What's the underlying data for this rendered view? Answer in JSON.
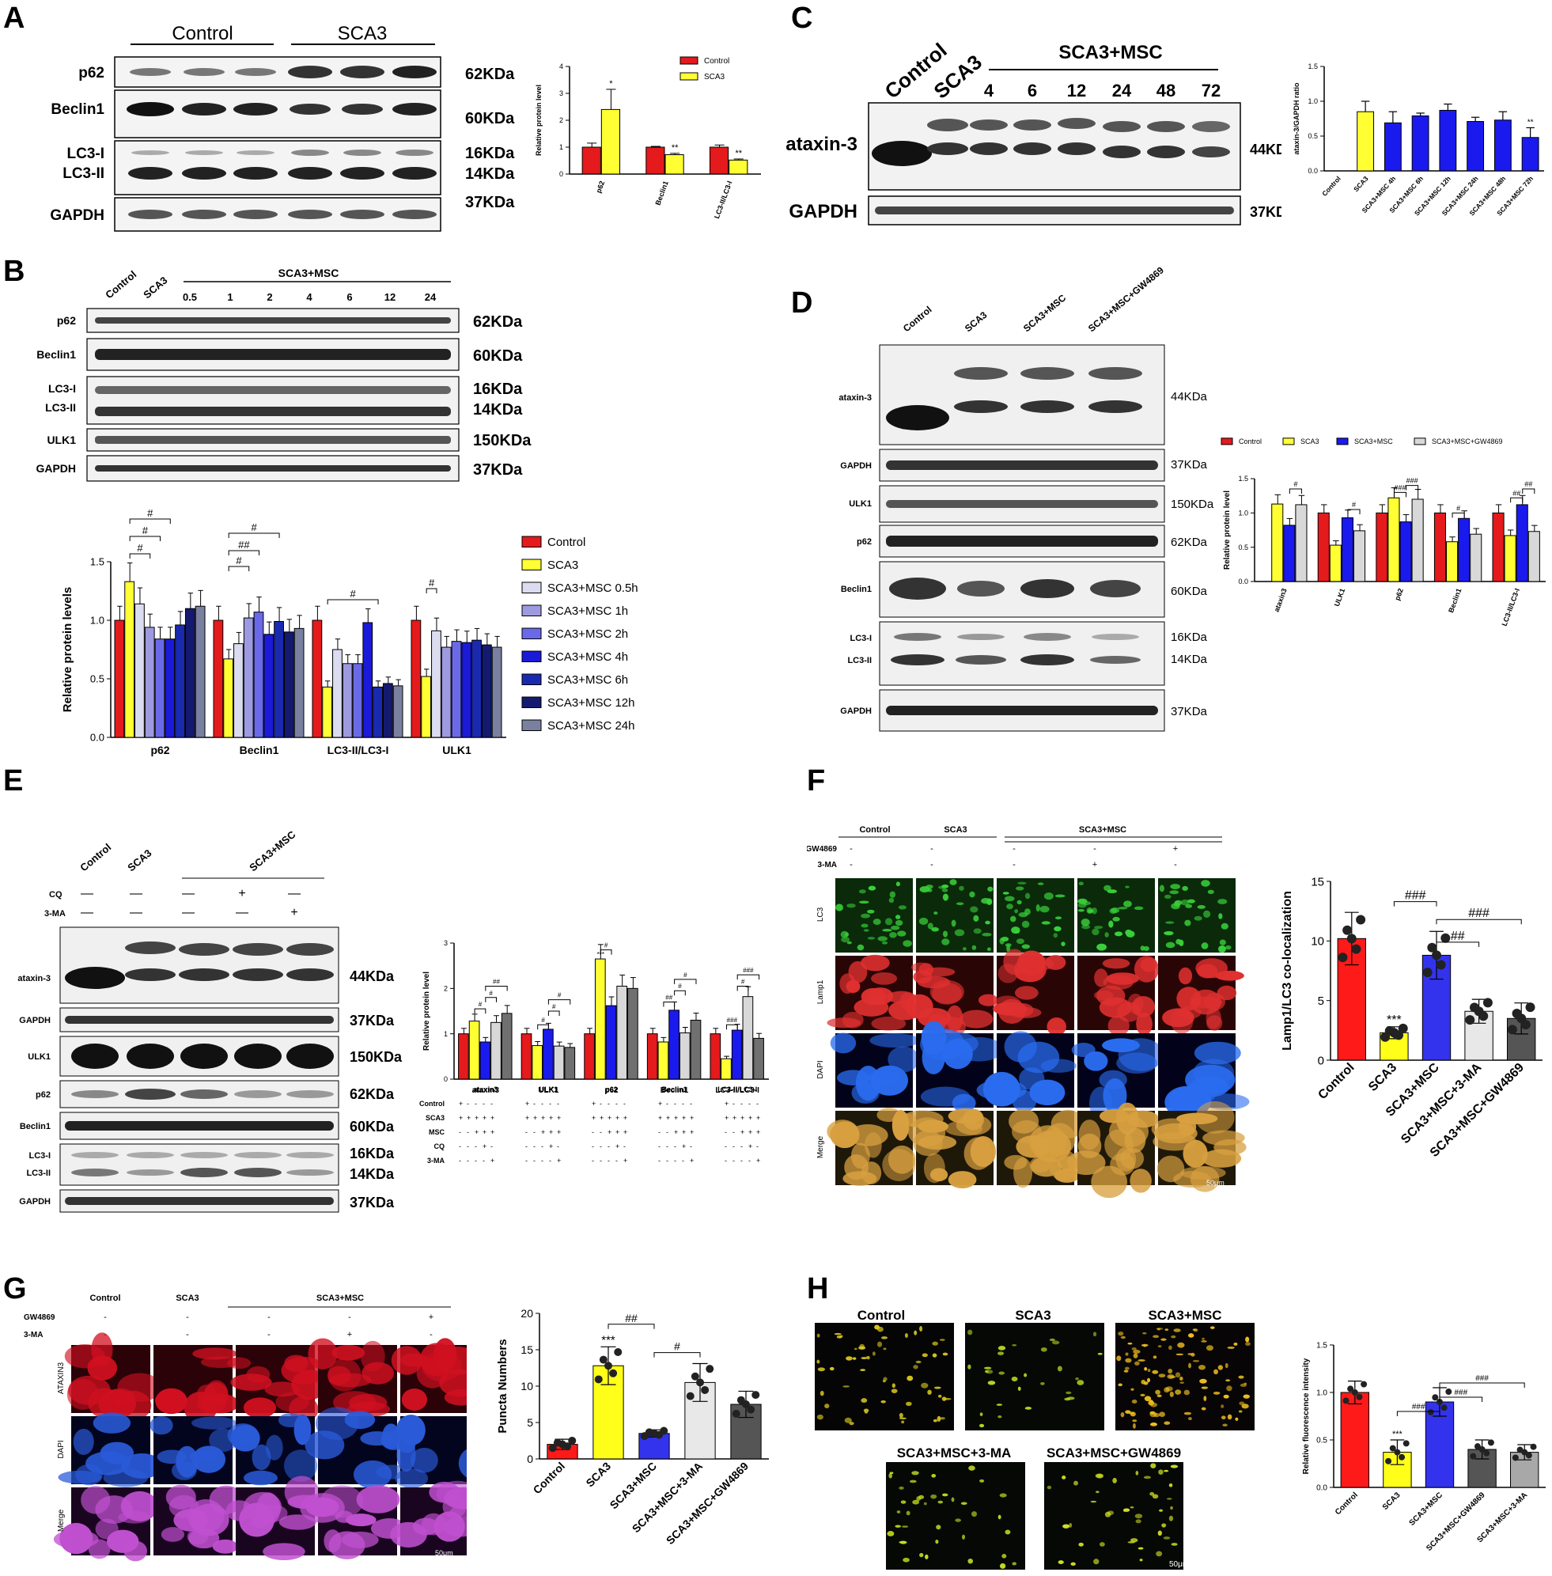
{
  "panels": {
    "A": {
      "letter": "A",
      "groups": [
        "Control",
        "SCA3"
      ],
      "rows": [
        {
          "label": "p62",
          "kda": "62KDa"
        },
        {
          "label": "Beclin1",
          "kda": "60KDa"
        },
        {
          "label": "LC3-I",
          "kda": "16KDa"
        },
        {
          "label": "LC3-II",
          "kda": "14KDa"
        },
        {
          "label": "GAPDH",
          "kda": "37KDa"
        }
      ]
    },
    "B": {
      "letter": "B",
      "lanes": [
        "Control",
        "SCA3",
        "0.5",
        "1",
        "2",
        "4",
        "6",
        "12",
        "24"
      ],
      "group": "SCA3+MSC",
      "rows": [
        {
          "label": "p62",
          "kda": "62KDa"
        },
        {
          "label": "Beclin1",
          "kda": "60KDa"
        },
        {
          "label": "LC3-I",
          "kda": "16KDa"
        },
        {
          "label": "LC3-II",
          "kda": "14KDa"
        },
        {
          "label": "ULK1",
          "kda": "150KDa"
        },
        {
          "label": "GAPDH",
          "kda": "37KDa"
        }
      ]
    },
    "C": {
      "letter": "C",
      "lanes": [
        "Control",
        "SCA3",
        "4",
        "6",
        "12",
        "24",
        "48",
        "72"
      ],
      "group": "SCA3+MSC",
      "rows": [
        {
          "label": "ataxin-3",
          "kda": "44KDa"
        },
        {
          "label": "GAPDH",
          "kda": "37KDa"
        }
      ]
    },
    "D": {
      "letter": "D",
      "lanes": [
        "Control",
        "SCA3",
        "SCA3+MSC",
        "SCA3+MSC+GW4869"
      ],
      "rows": [
        {
          "label": "ataxin-3",
          "kda": "44KDa"
        },
        {
          "label": "GAPDH",
          "kda": "37KDa"
        },
        {
          "label": "ULK1",
          "kda": "150KDa"
        },
        {
          "label": "p62",
          "kda": "62KDa"
        },
        {
          "label": "Beclin1",
          "kda": "60KDa"
        },
        {
          "label": "LC3-I",
          "kda": "16KDa"
        },
        {
          "label": "LC3-II",
          "kda": "14KDa"
        },
        {
          "label": "GAPDH",
          "kda": "37KDa"
        }
      ]
    },
    "E": {
      "letter": "E",
      "lanes": [
        "Control",
        "SCA3"
      ],
      "group": "SCA3+MSC",
      "treat_rows": [
        {
          "label": "CQ",
          "vals": [
            "—",
            "—",
            "—",
            "+",
            "—"
          ]
        },
        {
          "label": "3-MA",
          "vals": [
            "—",
            "—",
            "—",
            "—",
            "+"
          ]
        }
      ],
      "rows": [
        {
          "label": "ataxin-3",
          "kda": "44KDa"
        },
        {
          "label": "GAPDH",
          "kda": "37KDa"
        },
        {
          "label": "ULK1",
          "kda": "150KDa"
        },
        {
          "label": "p62",
          "kda": "62KDa"
        },
        {
          "label": "Beclin1",
          "kda": "60KDa"
        },
        {
          "label": "LC3-I",
          "kda": "16KDa"
        },
        {
          "label": "LC3-II",
          "kda": "14KDa"
        },
        {
          "label": "GAPDH",
          "kda": "37KDa"
        }
      ],
      "table": {
        "rows": [
          {
            "label": "Control",
            "vals": [
              "+",
              "-",
              "-",
              "-",
              "-"
            ]
          },
          {
            "label": "SCA3",
            "vals": [
              "+",
              "+",
              "+",
              "+",
              "+"
            ]
          },
          {
            "label": "MSC",
            "vals": [
              "-",
              "-",
              "+",
              "+",
              "+"
            ]
          },
          {
            "label": "CQ",
            "vals": [
              "-",
              "-",
              "-",
              "+",
              "-"
            ]
          },
          {
            "label": "3-MA",
            "vals": [
              "-",
              "-",
              "-",
              "-",
              "+"
            ]
          }
        ]
      }
    },
    "F": {
      "letter": "F",
      "cols": [
        "Control",
        "SCA3"
      ],
      "group": "SCA3+MSC",
      "treat_rows": [
        {
          "label": "GW4869",
          "vals": [
            "-",
            "-",
            "-",
            "-",
            "+"
          ]
        },
        {
          "label": "3-MA",
          "vals": [
            "-",
            "-",
            "-",
            "+",
            "-"
          ]
        }
      ],
      "rows": [
        "LC3",
        "Lamp1",
        "DAPI",
        "Merge"
      ],
      "scale": "50μm"
    },
    "G": {
      "letter": "G",
      "cols": [
        "Control",
        "SCA3"
      ],
      "group": "SCA3+MSC",
      "treat_rows": [
        {
          "label": "GW4869",
          "vals": [
            "-",
            "-",
            "-",
            "-",
            "+"
          ]
        },
        {
          "label": "3-MA",
          "vals": [
            "-",
            "-",
            "-",
            "+",
            "-"
          ]
        }
      ],
      "rows": [
        "ATAXIN3",
        "DAPI",
        "Merge"
      ],
      "scale": "50μm"
    },
    "H": {
      "letter": "H",
      "top": [
        "Control",
        "SCA3",
        "SCA3+MSC"
      ],
      "bottom": [
        "SCA3+MSC+3-MA",
        "SCA3+MSC+GW4869"
      ],
      "scale": "50μm"
    }
  },
  "chart_data": [
    {
      "id": "A",
      "type": "bar",
      "categories": [
        "p62",
        "Beclin1",
        "LC3-II/LC3-I"
      ],
      "series": [
        {
          "name": "Control",
          "color": "#e41a1c",
          "values": [
            1.0,
            1.0,
            1.0
          ],
          "err": [
            0.15,
            0.03,
            0.08
          ]
        },
        {
          "name": "SCA3",
          "color": "#ffff33",
          "values": [
            2.4,
            0.72,
            0.52
          ],
          "err": [
            0.75,
            0.05,
            0.04
          ]
        }
      ],
      "ylabel": "Relative protein level",
      "ylim": [
        0,
        4
      ],
      "yticks": [
        0,
        1,
        2,
        3,
        4
      ],
      "sig": [
        [
          "",
          "*"
        ],
        [
          "",
          "**"
        ],
        [
          "",
          "**"
        ]
      ]
    },
    {
      "id": "B",
      "type": "bar",
      "categories": [
        "p62",
        "Beclin1",
        "LC3-II/LC3-I",
        "ULK1"
      ],
      "series": [
        {
          "name": "Control",
          "color": "#e41a1c",
          "values": [
            1.0,
            1.0,
            1.0,
            1.0
          ]
        },
        {
          "name": "SCA3",
          "color": "#ffff33",
          "values": [
            1.33,
            0.67,
            0.43,
            0.52
          ]
        },
        {
          "name": "SCA3+MSC 0.5h",
          "color": "#dcdcf0",
          "values": [
            1.14,
            0.8,
            0.75,
            0.91
          ]
        },
        {
          "name": "SCA3+MSC 1h",
          "color": "#9e9ae0",
          "values": [
            0.94,
            1.02,
            0.63,
            0.77
          ]
        },
        {
          "name": "SCA3+MSC 2h",
          "color": "#6a6ae8",
          "values": [
            0.84,
            1.07,
            0.63,
            0.82
          ]
        },
        {
          "name": "SCA3+MSC 4h",
          "color": "#1a1ad8",
          "values": [
            0.84,
            0.88,
            0.98,
            0.81
          ]
        },
        {
          "name": "SCA3+MSC 6h",
          "color": "#1a2ab0",
          "values": [
            0.96,
            0.99,
            0.43,
            0.83
          ]
        },
        {
          "name": "SCA3+MSC 12h",
          "color": "#141a70",
          "values": [
            1.1,
            0.9,
            0.46,
            0.79
          ]
        },
        {
          "name": "SCA3+MSC 24h",
          "color": "#7a80a0",
          "values": [
            1.12,
            0.93,
            0.44,
            0.77
          ]
        }
      ],
      "ylabel": "Relative protein levels",
      "ylim": [
        0,
        1.5
      ],
      "yticks": [
        0.0,
        0.5,
        1.0,
        1.5
      ],
      "sig_labels": [
        "#",
        "#",
        "#",
        "#",
        "##",
        "#",
        "#",
        "#"
      ]
    },
    {
      "id": "C",
      "type": "bar",
      "categories": [
        "Control",
        "SCA3",
        "SCA3+MSC 4h",
        "SCA3+MSC 6h",
        "SCA3+MSC 12h",
        "SCA3+MSC 24h",
        "SCA3+MSC 48h",
        "SCA3+MSC 72h"
      ],
      "values": [
        0,
        0.85,
        0.69,
        0.79,
        0.87,
        0.71,
        0.73,
        0.48
      ],
      "err": [
        0,
        0.15,
        0.16,
        0.04,
        0.09,
        0.06,
        0.12,
        0.14
      ],
      "colors": [
        "#e41a1c",
        "#ffff33",
        "#1a1aee",
        "#1a1aee",
        "#1a1aee",
        "#1a1aee",
        "#1a1aee",
        "#1a1aee"
      ],
      "ylabel": "ataxin-3/GAPDH ratio",
      "ylim": [
        0,
        1.5
      ],
      "yticks": [
        0.0,
        0.5,
        1.0,
        1.5
      ],
      "sig": [
        "",
        "",
        "",
        "",
        "",
        "",
        "",
        "**"
      ]
    },
    {
      "id": "D",
      "type": "bar",
      "categories": [
        "ataxin3",
        "ULK1",
        "p62",
        "Beclin1",
        "LC3-II/LC3-I"
      ],
      "series": [
        {
          "name": "Control",
          "color": "#e41a1c",
          "values": [
            0,
            1.0,
            1.0,
            1.0,
            1.0
          ]
        },
        {
          "name": "SCA3",
          "color": "#ffff33",
          "values": [
            1.13,
            0.53,
            1.22,
            0.58,
            0.67
          ]
        },
        {
          "name": "SCA3+MSC",
          "color": "#1a1aee",
          "values": [
            0.82,
            0.93,
            0.87,
            0.92,
            1.12
          ]
        },
        {
          "name": "SCA3+MSC+GW4869",
          "color": "#d8d8d8",
          "values": [
            1.12,
            0.74,
            1.2,
            0.69,
            0.73
          ]
        }
      ],
      "ylabel": "Relative protein level",
      "ylim": [
        0,
        1.5
      ],
      "yticks": [
        0.0,
        0.5,
        1.0,
        1.5
      ],
      "sig_labels": [
        "#",
        "#",
        "###",
        "###",
        "#",
        "##",
        "##"
      ]
    },
    {
      "id": "E",
      "type": "bar",
      "categories": [
        "ataxin3",
        "ULK1",
        "p62",
        "Beclin1",
        "LC3-II/LC3-I"
      ],
      "series": [
        {
          "name": "Control",
          "color": "#e41a1c",
          "values": [
            1.0,
            1.0,
            1.0,
            1.0,
            1.0
          ]
        },
        {
          "name": "SCA3",
          "color": "#ffff33",
          "values": [
            1.28,
            0.74,
            2.65,
            0.82,
            0.45
          ]
        },
        {
          "name": "SCA3+MSC",
          "color": "#1a1aee",
          "values": [
            0.82,
            1.1,
            1.62,
            1.52,
            1.08
          ]
        },
        {
          "name": "SCA3+MSC+CQ",
          "color": "#d8d8d8",
          "values": [
            1.25,
            0.73,
            2.05,
            1.02,
            1.82
          ]
        },
        {
          "name": "SCA3+MSC+3-MA",
          "color": "#707070",
          "values": [
            1.45,
            0.7,
            2.0,
            1.3,
            0.9
          ]
        }
      ],
      "ylabel": "Relative protein level",
      "ylim": [
        0,
        3
      ],
      "yticks": [
        0,
        1,
        2,
        3
      ],
      "sig_labels": [
        "#",
        "#",
        "##",
        "#",
        "#",
        "#",
        "#",
        "##",
        "#",
        "#",
        "###",
        "#",
        "***"
      ]
    },
    {
      "id": "F",
      "type": "bar",
      "categories": [
        "Control",
        "SCA3",
        "SCA3+MSC",
        "SCA3+MSC+3-MA",
        "SCA3+MSC+GW4869"
      ],
      "values": [
        10.2,
        2.3,
        8.8,
        4.1,
        3.5
      ],
      "err": [
        2.2,
        0.5,
        2.0,
        1.0,
        1.3
      ],
      "colors": [
        "#ff1a1a",
        "#ffff1a",
        "#3333ee",
        "#e8e8e8",
        "#555555"
      ],
      "ylabel": "Lamp1/LC3 co-localization",
      "ylim": [
        0,
        15
      ],
      "yticks": [
        0,
        5,
        10,
        15
      ],
      "sig": [
        "",
        "***",
        "",
        "",
        ""
      ],
      "sig_labels": [
        "###",
        "###",
        "##"
      ]
    },
    {
      "id": "G",
      "type": "bar",
      "categories": [
        "Control",
        "SCA3",
        "SCA3+MSC",
        "SCA3+MSC+3-MA",
        "SCA3+MSC+GW4869"
      ],
      "values": [
        2.0,
        12.8,
        3.5,
        10.5,
        7.5
      ],
      "err": [
        0.7,
        2.6,
        0.5,
        2.6,
        1.8
      ],
      "colors": [
        "#ff1a1a",
        "#ffff1a",
        "#3333ee",
        "#e8e8e8",
        "#555555"
      ],
      "ylabel": "Puncta Numbers",
      "ylim": [
        0,
        20
      ],
      "yticks": [
        0,
        5,
        10,
        15,
        20
      ],
      "sig": [
        "",
        "***",
        "",
        "",
        ""
      ],
      "sig_labels": [
        "##",
        "#"
      ]
    },
    {
      "id": "H",
      "type": "bar",
      "categories": [
        "Control",
        "SCA3",
        "SCA3+MSC",
        "SCA3+MSC+GW4869",
        "SCA3+MSC+3-MA"
      ],
      "values": [
        1.0,
        0.37,
        0.9,
        0.4,
        0.37
      ],
      "err": [
        0.12,
        0.13,
        0.15,
        0.1,
        0.08
      ],
      "colors": [
        "#ff1a1a",
        "#ffff1a",
        "#3333ee",
        "#555555",
        "#a8a8a8"
      ],
      "ylabel": "Relative fluorescence intensity",
      "ylim": [
        0,
        1.5
      ],
      "yticks": [
        0.0,
        0.5,
        1.0,
        1.5
      ],
      "sig": [
        "",
        "***",
        "",
        "",
        ""
      ],
      "sig_labels": [
        "###",
        "###",
        "###"
      ]
    }
  ]
}
